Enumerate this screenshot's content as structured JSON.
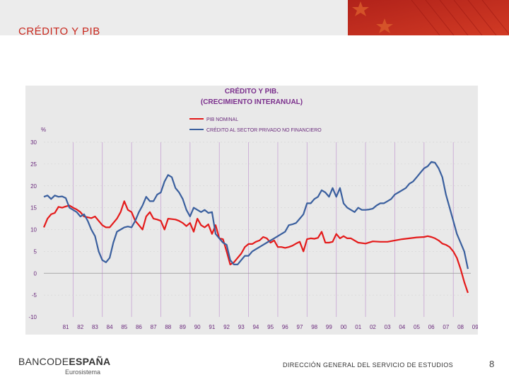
{
  "slide": {
    "title": "CRÉDITO Y PIB",
    "footer_logo_light": "BANCODE",
    "footer_logo_bold": "ESPAÑA",
    "footer_sub": "Eurosistema",
    "footer_text": "DIRECCIÓN GENERAL DEL SERVICIO DE ESTUDIOS",
    "page_number": "8"
  },
  "colors": {
    "accent": "#c8281e",
    "pib": "#e41a1a",
    "credito": "#3a5f9e",
    "grid": "#c7a3d4"
  },
  "chart_data": {
    "type": "line",
    "title": "CRÉDITO Y PIB.",
    "subtitle": "(CRECIMIENTO INTERANUAL)",
    "ylabel": "%",
    "ylim": [
      -10,
      30
    ],
    "xlim": [
      1980,
      2009.2
    ],
    "yticks": [
      30,
      25,
      20,
      15,
      10,
      5,
      0,
      -5,
      -10
    ],
    "ytick_labels": [
      "30",
      "25",
      "20",
      "15",
      "10",
      "5",
      "0",
      "-5",
      "-10"
    ],
    "xticks": [
      "81",
      "82",
      "83",
      "84",
      "85",
      "86",
      "87",
      "88",
      "89",
      "90",
      "91",
      "92",
      "93",
      "94",
      "95",
      "96",
      "97",
      "98",
      "99",
      "00",
      "01",
      "02",
      "03",
      "04",
      "05",
      "06",
      "07",
      "08",
      "09"
    ],
    "legend_position": "top",
    "series": [
      {
        "name": "PIB NOMINAL",
        "x": [
          1980.0,
          1980.25,
          1980.5,
          1980.75,
          1981.0,
          1981.25,
          1981.5,
          1981.75,
          1982.0,
          1982.25,
          1982.5,
          1982.75,
          1983.0,
          1983.25,
          1983.5,
          1983.75,
          1984.0,
          1984.25,
          1984.5,
          1984.75,
          1985.0,
          1985.25,
          1985.5,
          1985.75,
          1986.0,
          1986.25,
          1986.5,
          1986.75,
          1987.0,
          1987.25,
          1987.5,
          1987.75,
          1988.0,
          1988.25,
          1988.5,
          1988.75,
          1989.0,
          1989.25,
          1989.5,
          1989.75,
          1990.0,
          1990.25,
          1990.5,
          1990.75,
          1991.0,
          1991.25,
          1991.5,
          1991.75,
          1992.0,
          1992.25,
          1992.5,
          1992.75,
          1993.0,
          1993.25,
          1993.5,
          1993.75,
          1994.0,
          1994.25,
          1994.5,
          1994.75,
          1995.0,
          1995.25,
          1995.5,
          1995.75,
          1996.0,
          1996.25,
          1996.5,
          1996.75,
          1997.0,
          1997.25,
          1997.5,
          1997.75,
          1998.0,
          1998.25,
          1998.5,
          1998.75,
          1999.0,
          1999.25,
          1999.5,
          1999.75,
          2000.0,
          2000.25,
          2000.5,
          2000.75,
          2001.0,
          2001.5,
          2002.0,
          2002.5,
          2003.0,
          2003.5,
          2004.0,
          2004.5,
          2005.0,
          2005.5,
          2006.0,
          2006.25,
          2006.5,
          2006.75,
          2007.0,
          2007.25,
          2007.5,
          2007.75,
          2008.0,
          2008.25,
          2008.5,
          2008.75,
          2009.0
        ],
        "values": [
          10.5,
          12.5,
          13.5,
          13.8,
          15.2,
          15.0,
          15.3,
          15.5,
          15.0,
          14.6,
          14.0,
          13.0,
          12.8,
          12.6,
          13.0,
          12.0,
          11.0,
          10.5,
          10.5,
          11.5,
          12.5,
          14.0,
          16.5,
          14.5,
          14.0,
          12.0,
          11.0,
          10.0,
          13.0,
          14.0,
          12.5,
          12.3,
          12.0,
          10.0,
          12.5,
          12.4,
          12.3,
          12.0,
          11.5,
          10.8,
          11.5,
          9.5,
          12.5,
          11.0,
          10.5,
          11.2,
          9.0,
          11.0,
          8.0,
          7.8,
          5.0,
          2.0,
          2.5,
          3.5,
          4.5,
          6.0,
          6.7,
          6.7,
          7.2,
          7.5,
          8.3,
          8.0,
          7.0,
          7.5,
          6.0,
          6.0,
          5.8,
          6.0,
          6.3,
          6.8,
          7.2,
          5.0,
          7.8,
          8.0,
          7.9,
          8.1,
          9.5,
          7.0,
          7.0,
          7.2,
          9.0,
          8.0,
          8.5,
          8.0,
          8.0,
          7.0,
          6.8,
          7.3,
          7.2,
          7.2,
          7.5,
          7.8,
          8.0,
          8.2,
          8.3,
          8.5,
          8.3,
          8.0,
          7.5,
          6.8,
          6.5,
          6.0,
          5.0,
          3.5,
          1.0,
          -2.0,
          -4.5
        ]
      },
      {
        "name": "CRÉDITO AL SECTOR PRIVADO NO FINANCIERO",
        "x": [
          1980.0,
          1980.25,
          1980.5,
          1980.75,
          1981.0,
          1981.25,
          1981.5,
          1981.75,
          1982.0,
          1982.25,
          1982.5,
          1982.75,
          1983.0,
          1983.25,
          1983.5,
          1983.75,
          1984.0,
          1984.25,
          1984.5,
          1984.75,
          1985.0,
          1985.25,
          1985.5,
          1985.75,
          1986.0,
          1986.25,
          1986.5,
          1986.75,
          1987.0,
          1987.25,
          1987.5,
          1987.75,
          1988.0,
          1988.25,
          1988.5,
          1988.75,
          1989.0,
          1989.25,
          1989.5,
          1989.75,
          1990.0,
          1990.25,
          1990.5,
          1990.75,
          1991.0,
          1991.25,
          1991.5,
          1991.75,
          1992.0,
          1992.25,
          1992.5,
          1992.75,
          1993.0,
          1993.25,
          1993.5,
          1993.75,
          1994.0,
          1994.25,
          1994.5,
          1994.75,
          1995.0,
          1995.25,
          1995.5,
          1995.75,
          1996.0,
          1996.25,
          1996.5,
          1996.75,
          1997.0,
          1997.25,
          1997.5,
          1997.75,
          1998.0,
          1998.25,
          1998.5,
          1998.75,
          1999.0,
          1999.25,
          1999.5,
          1999.75,
          2000.0,
          2000.25,
          2000.5,
          2000.75,
          2001.0,
          2001.25,
          2001.5,
          2001.75,
          2002.0,
          2002.25,
          2002.5,
          2002.75,
          2003.0,
          2003.25,
          2003.5,
          2003.75,
          2004.0,
          2004.25,
          2004.5,
          2004.75,
          2005.0,
          2005.25,
          2005.5,
          2005.75,
          2006.0,
          2006.25,
          2006.5,
          2006.75,
          2007.0,
          2007.25,
          2007.5,
          2007.75,
          2008.0,
          2008.25,
          2008.5,
          2008.75,
          2009.0
        ],
        "values": [
          17.5,
          17.8,
          17.0,
          17.8,
          17.5,
          17.6,
          17.2,
          15.0,
          14.5,
          14.0,
          13.0,
          13.5,
          12.0,
          10.0,
          8.5,
          5.0,
          3.0,
          2.5,
          3.5,
          7.0,
          9.5,
          10.0,
          10.5,
          10.7,
          10.5,
          12.0,
          14.0,
          15.5,
          17.5,
          16.5,
          16.5,
          18.0,
          18.5,
          21.0,
          22.5,
          22.0,
          19.5,
          18.5,
          17.0,
          14.5,
          13.0,
          15.0,
          14.5,
          14.0,
          14.5,
          13.8,
          14.0,
          9.0,
          8.0,
          7.0,
          6.5,
          3.0,
          2.0,
          2.0,
          3.0,
          4.0,
          4.0,
          5.0,
          5.5,
          6.0,
          6.5,
          7.0,
          7.5,
          8.0,
          8.5,
          9.0,
          9.5,
          11.0,
          11.2,
          11.5,
          12.5,
          13.5,
          16.0,
          16.0,
          17.0,
          17.5,
          19.0,
          18.5,
          17.5,
          19.5,
          17.5,
          19.5,
          16.0,
          15.0,
          14.5,
          14.0,
          15.0,
          14.5,
          14.5,
          14.6,
          14.8,
          15.5,
          16.0,
          16.0,
          16.5,
          17.0,
          18.0,
          18.5,
          19.0,
          19.5,
          20.5,
          21.0,
          22.0,
          23.0,
          24.0,
          24.5,
          25.5,
          25.3,
          24.0,
          22.0,
          18.0,
          15.0,
          12.0,
          9.0,
          7.0,
          5.0,
          1.0
        ]
      }
    ]
  }
}
